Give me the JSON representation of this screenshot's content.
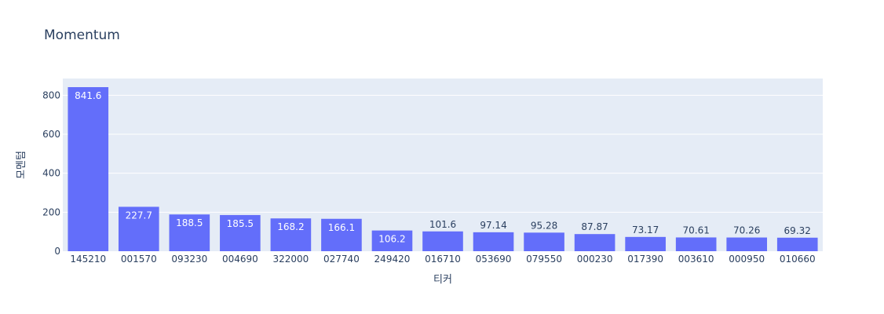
{
  "chart_data": {
    "type": "bar",
    "title": "Momentum",
    "xlabel": "티커",
    "ylabel": "모멘텀",
    "categories": [
      "145210",
      "001570",
      "093230",
      "004690",
      "322000",
      "027740",
      "249420",
      "016710",
      "053690",
      "079550",
      "000230",
      "017390",
      "003610",
      "000950",
      "010660"
    ],
    "values": [
      841.6,
      227.7,
      188.5,
      185.5,
      168.2,
      166.1,
      106.2,
      101.6,
      97.14,
      95.28,
      87.87,
      73.17,
      70.61,
      70.26,
      69.32
    ],
    "value_labels": [
      "841.6",
      "227.7",
      "188.5",
      "185.5",
      "168.2",
      "166.1",
      "106.2",
      "101.6",
      "97.14",
      "95.28",
      "87.87",
      "73.17",
      "70.61",
      "70.26",
      "69.32"
    ],
    "yticks": [
      0,
      200,
      400,
      600,
      800
    ],
    "ylim": [
      0,
      885.9
    ],
    "grid": true,
    "legend": "none",
    "colors": {
      "bar": "#636efa",
      "plot_background": "#e5ecf6",
      "grid": "#ffffff",
      "text": "#2a3f5f",
      "label_inside": "#ffffff"
    }
  }
}
